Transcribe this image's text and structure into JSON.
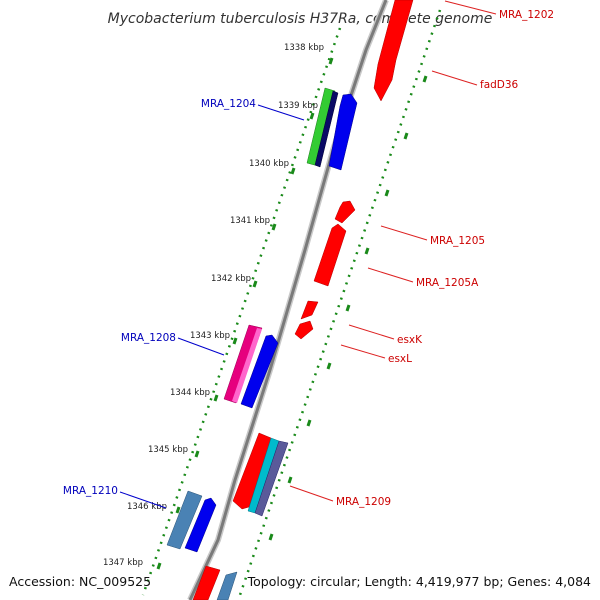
{
  "map": {
    "title": "Mycobacterium tuberculosis H37Ra, complete genome",
    "accession": "Accession: NC_009525",
    "topology": "Topology: circular; Length: 4,419,977 bp; Genes: 4,084",
    "colors": {
      "backbone": "#8a8a8a",
      "ruler": "#1a8a1a",
      "forward_gene": "#ff0000",
      "reverse_gene": "#0000ee",
      "label_forward": "#cc0000",
      "label_reverse": "#0000bb"
    }
  },
  "ruler_ticks": [
    {
      "label": "1338 kbp"
    },
    {
      "label": "1339 kbp"
    },
    {
      "label": "1340 kbp"
    },
    {
      "label": "1341 kbp"
    },
    {
      "label": "1342 kbp"
    },
    {
      "label": "1343 kbp"
    },
    {
      "label": "1344 kbp"
    },
    {
      "label": "1345 kbp"
    },
    {
      "label": "1346 kbp"
    },
    {
      "label": "1347 kbp"
    }
  ],
  "gene_labels": {
    "mra_1202": "MRA_1202",
    "fadd36": "fadD36",
    "mra_1204": "MRA_1204",
    "mra_1205": "MRA_1205",
    "mra_1205a": "MRA_1205A",
    "esxk": "esxK",
    "esxl": "esxL",
    "mra_1208": "MRA_1208",
    "mra_1209": "MRA_1209",
    "mra_1210": "MRA_1210"
  }
}
